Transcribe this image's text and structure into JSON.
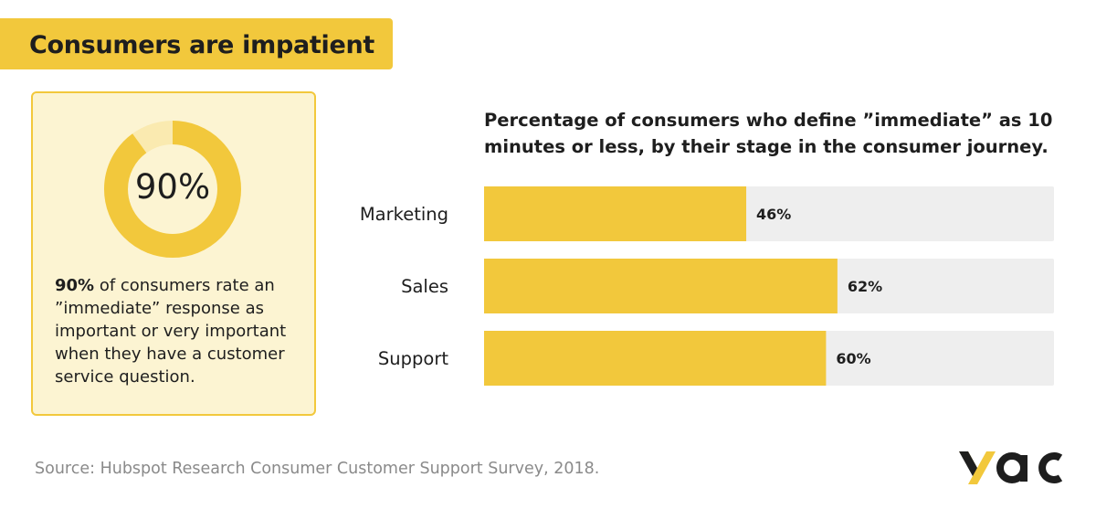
{
  "header": {
    "title": "Consumers are impatient"
  },
  "stat_card": {
    "percent_label": "90%",
    "percent_value": 90,
    "text_bold": "90%",
    "text_rest": " of consumers rate an ”immediate” response as important or very important when they have a customer service question."
  },
  "chart_data": {
    "type": "bar",
    "orientation": "horizontal",
    "title": "Percentage of consumers who define ”immediate” as 10 minutes or less, by their stage in the consumer journey.",
    "categories": [
      "Marketing",
      "Sales",
      "Support"
    ],
    "values": [
      46,
      62,
      60
    ],
    "value_labels": [
      "46%",
      "62%",
      "60%"
    ],
    "xlim": [
      0,
      100
    ],
    "xlabel": "",
    "ylabel": "",
    "grid": false
  },
  "footer": {
    "source": "Source: Hubspot Research Consumer Customer Support Survey, 2018."
  },
  "brand": {
    "logo_text": "yac"
  },
  "colors": {
    "accent": "#f2c83c",
    "accent_light": "#fcf4d2",
    "donut_remainder": "#faeab0",
    "track": "#eeeeee",
    "text": "#1e1e1e",
    "muted": "#8a8a8a"
  }
}
